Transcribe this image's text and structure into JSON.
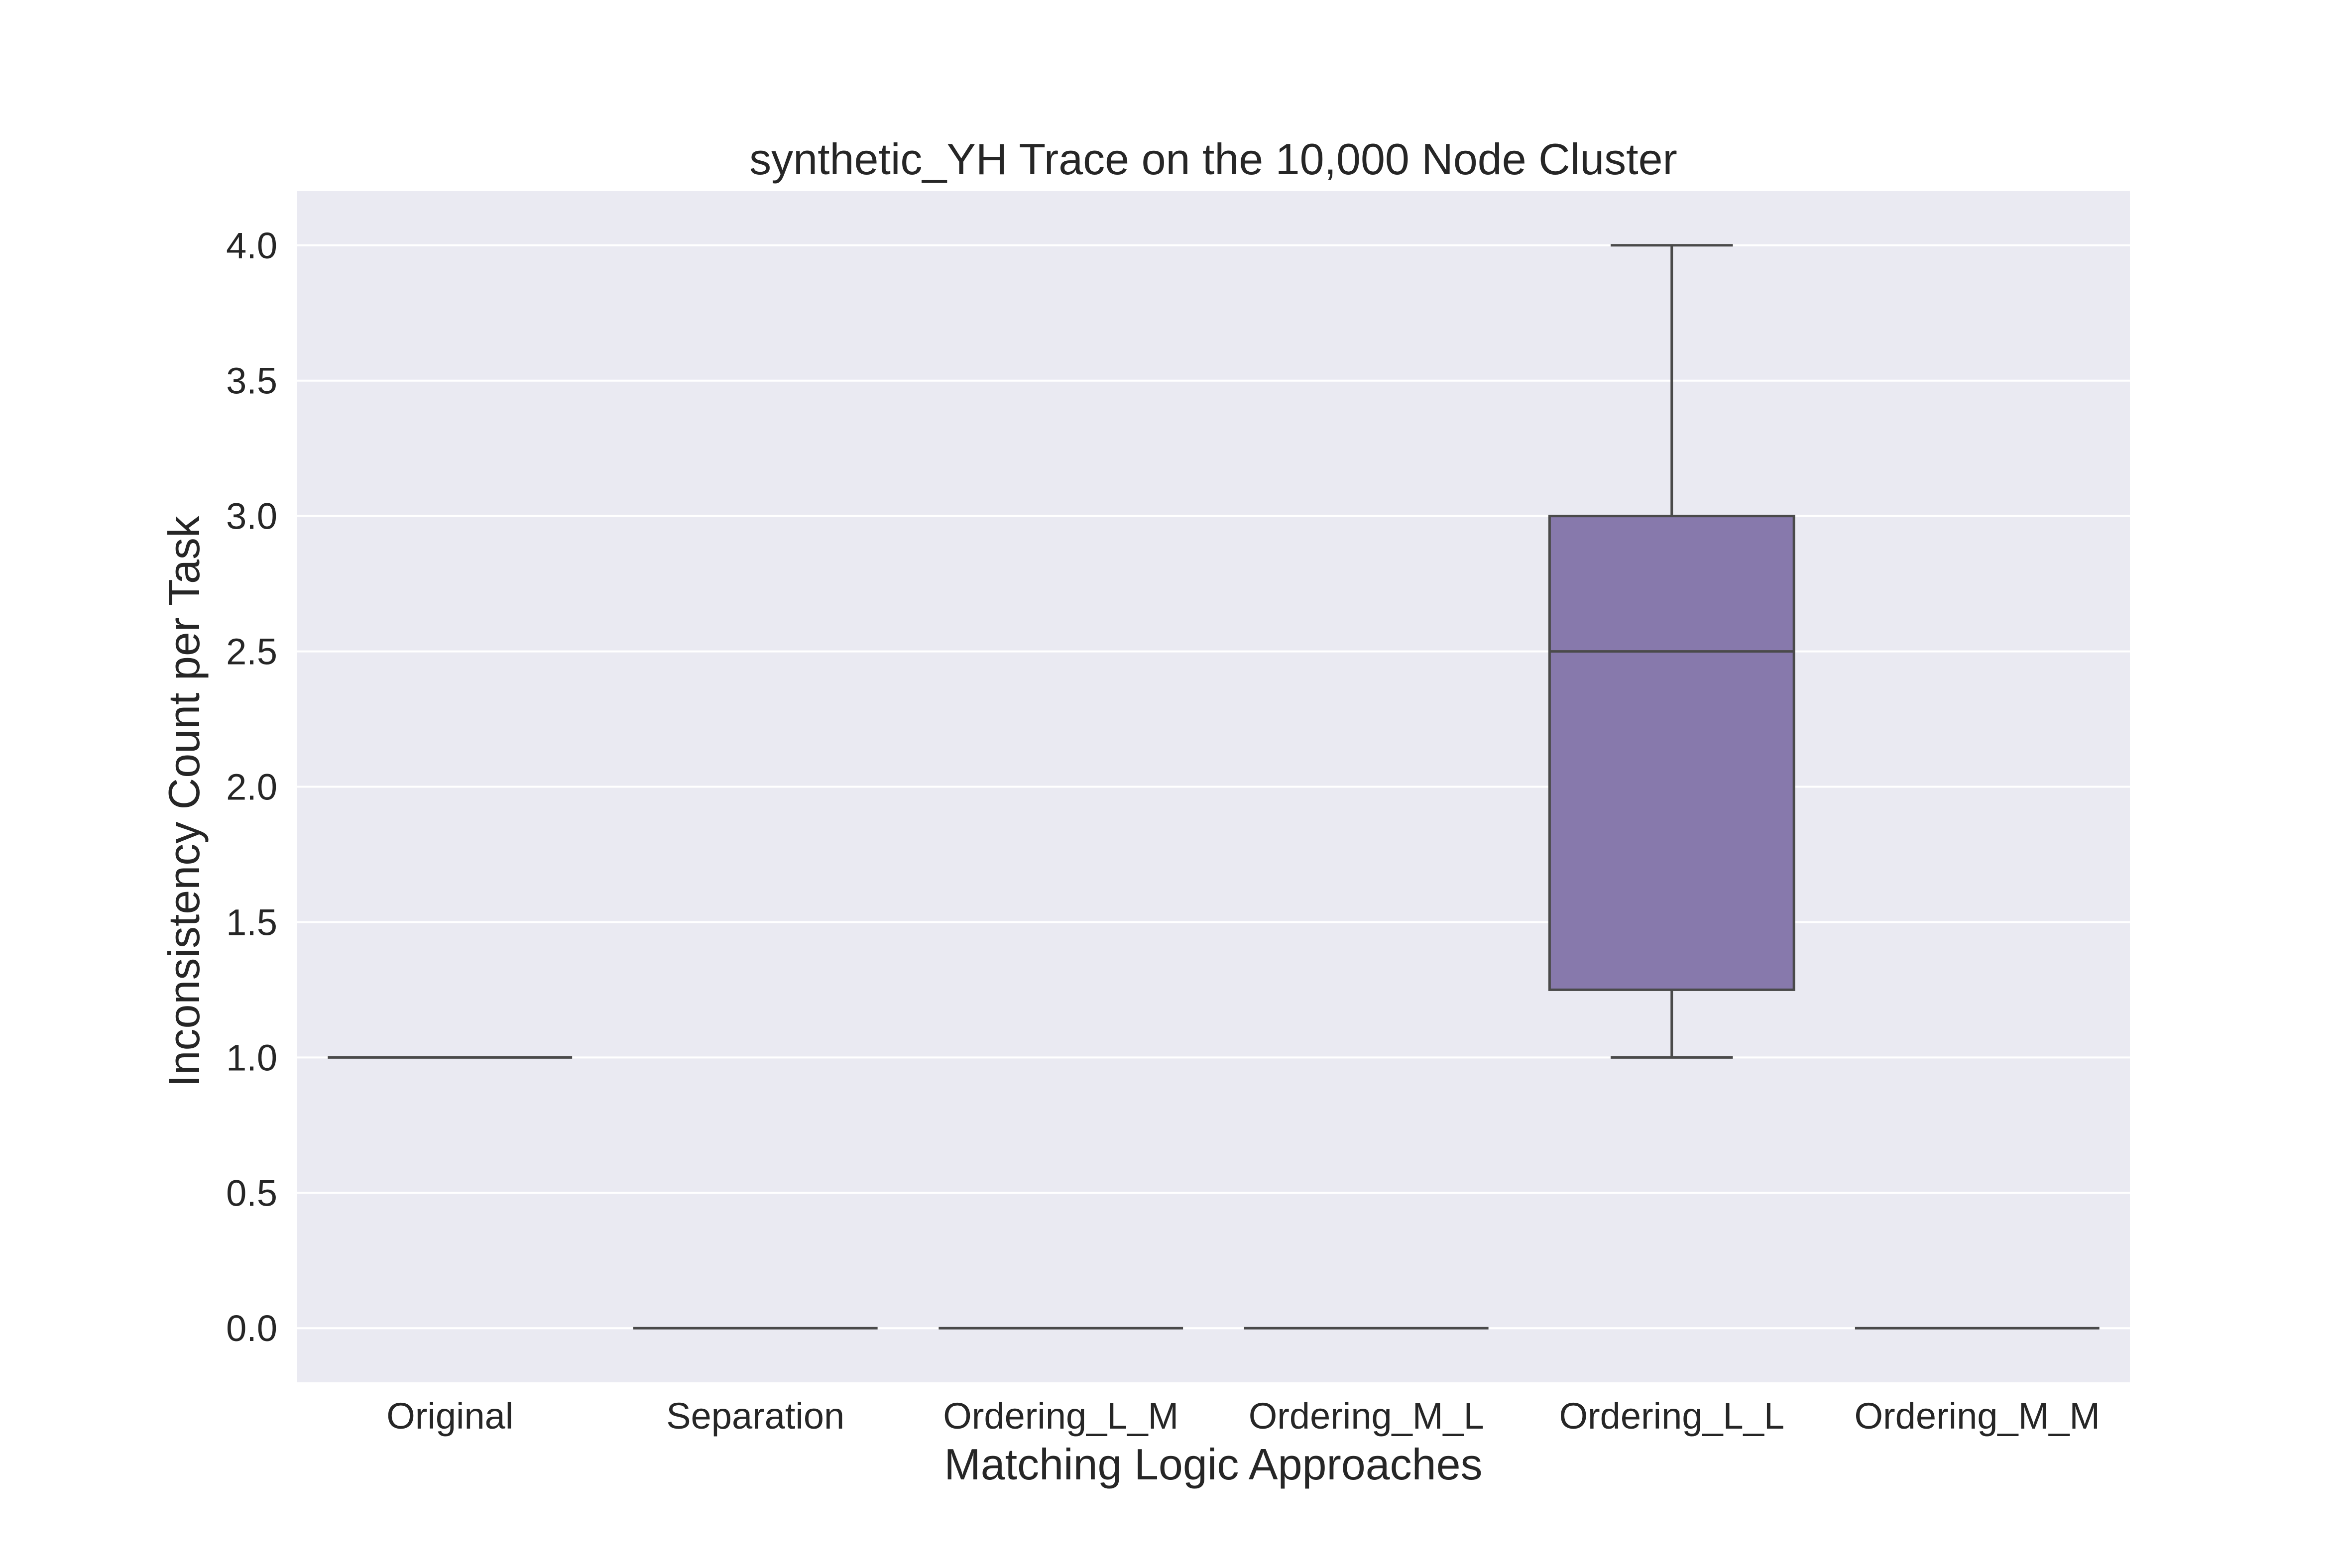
{
  "chart_data": {
    "type": "box",
    "title": "synthetic_YH Trace on the 10,000 Node Cluster",
    "xlabel": "Matching Logic Approaches",
    "ylabel": "Inconsistency Count per Task",
    "ylim": [
      -0.2,
      4.2
    ],
    "yticks": [
      0.0,
      0.5,
      1.0,
      1.5,
      2.0,
      2.5,
      3.0,
      3.5,
      4.0
    ],
    "ytick_labels": [
      "0.0",
      "0.5",
      "1.0",
      "1.5",
      "2.0",
      "2.5",
      "3.0",
      "3.5",
      "4.0"
    ],
    "grid": true,
    "categories": [
      "Original",
      "Separation",
      "Ordering_L_M",
      "Ordering_M_L",
      "Ordering_L_L",
      "Ordering_M_M"
    ],
    "boxes": [
      {
        "category": "Original",
        "whisker_low": 1.0,
        "q1": 1.0,
        "median": 1.0,
        "q3": 1.0,
        "whisker_high": 1.0
      },
      {
        "category": "Separation",
        "whisker_low": 0.0,
        "q1": 0.0,
        "median": 0.0,
        "q3": 0.0,
        "whisker_high": 0.0
      },
      {
        "category": "Ordering_L_M",
        "whisker_low": 0.0,
        "q1": 0.0,
        "median": 0.0,
        "q3": 0.0,
        "whisker_high": 0.0
      },
      {
        "category": "Ordering_M_L",
        "whisker_low": 0.0,
        "q1": 0.0,
        "median": 0.0,
        "q3": 0.0,
        "whisker_high": 0.0
      },
      {
        "category": "Ordering_L_L",
        "whisker_low": 1.0,
        "q1": 1.25,
        "median": 2.5,
        "q3": 3.0,
        "whisker_high": 4.0
      },
      {
        "category": "Ordering_M_M",
        "whisker_low": 0.0,
        "q1": 0.0,
        "median": 0.0,
        "q3": 0.0,
        "whisker_high": 0.0
      }
    ],
    "colors": {
      "box_fill": "#8779ac",
      "line": "#4a4a4a",
      "plot_background": "#eaeaf2",
      "grid": "#ffffff"
    }
  }
}
